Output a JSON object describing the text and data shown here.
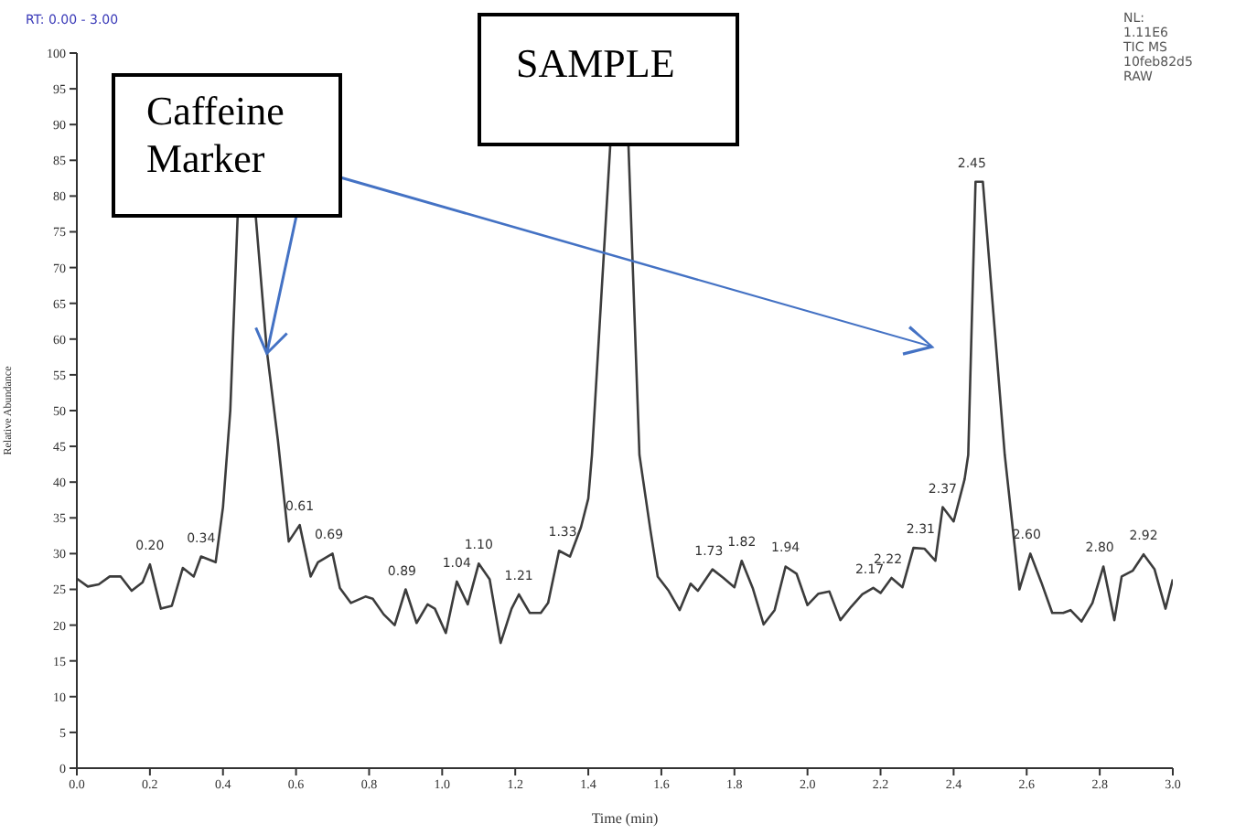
{
  "chart_data": {
    "type": "line",
    "xlabel": "Time (min)",
    "ylabel": "Relative Abundance",
    "x": [
      0.0,
      0.03,
      0.06,
      0.09,
      0.12,
      0.15,
      0.18,
      0.2,
      0.23,
      0.26,
      0.29,
      0.32,
      0.34,
      0.38,
      0.4,
      0.42,
      0.44,
      0.47,
      0.49,
      0.52,
      0.55,
      0.58,
      0.61,
      0.64,
      0.66,
      0.7,
      0.72,
      0.75,
      0.79,
      0.81,
      0.84,
      0.87,
      0.9,
      0.93,
      0.96,
      0.98,
      1.01,
      1.04,
      1.07,
      1.1,
      1.13,
      1.16,
      1.19,
      1.21,
      1.24,
      1.27,
      1.29,
      1.32,
      1.35,
      1.38,
      1.4,
      1.41,
      1.46,
      1.49,
      1.51,
      1.54,
      1.57,
      1.59,
      1.62,
      1.65,
      1.68,
      1.7,
      1.74,
      1.77,
      1.8,
      1.82,
      1.85,
      1.88,
      1.91,
      1.94,
      1.97,
      2.0,
      2.03,
      2.06,
      2.09,
      2.12,
      2.15,
      2.18,
      2.2,
      2.23,
      2.26,
      2.29,
      2.32,
      2.35,
      2.37,
      2.4,
      2.43,
      2.44,
      2.46,
      2.48,
      2.54,
      2.58,
      2.61,
      2.64,
      2.67,
      2.7,
      2.72,
      2.75,
      2.78,
      2.81,
      2.84,
      2.86,
      2.89,
      2.92,
      2.95,
      2.98,
      3.0
    ],
    "series": [
      {
        "color": "#3c3c3c",
        "values": [
          26.5,
          25.4,
          25.7,
          26.8,
          26.8,
          24.8,
          26,
          28.5,
          22.3,
          22.7,
          28,
          26.8,
          29.6,
          28.8,
          36.5,
          50,
          77,
          null,
          77,
          58.4,
          46,
          31.7,
          34,
          26.8,
          28.8,
          30,
          25.2,
          23.1,
          24,
          23.7,
          21.5,
          20,
          25,
          20.3,
          22.9,
          22.3,
          18.9,
          26.1,
          22.9,
          28.6,
          26.4,
          17.5,
          22.3,
          24.3,
          21.7,
          21.7,
          23.1,
          30.4,
          29.6,
          33.7,
          37.7,
          43.8,
          87,
          null,
          87,
          43.8,
          33.3,
          26.8,
          24.8,
          22.1,
          25.8,
          24.8,
          27.8,
          26.6,
          25.3,
          29,
          25.2,
          20.1,
          22.1,
          28.2,
          27.2,
          22.8,
          24.4,
          24.7,
          20.7,
          22.6,
          24.3,
          25.2,
          24.5,
          26.6,
          25.3,
          30.8,
          30.7,
          29,
          36.5,
          34.5,
          40.4,
          43.8,
          82,
          82,
          43.8,
          25,
          30,
          26,
          21.7,
          21.7,
          22.1,
          20.5,
          23.1,
          28.2,
          20.7,
          26.8,
          27.6,
          29.9,
          27.8,
          22.3,
          26.4
        ]
      }
    ],
    "xlim": [
      0,
      3.0
    ],
    "xticks": [
      {
        "value": 0,
        "label": "0.0"
      },
      0.2,
      0.4,
      0.6,
      0.8,
      {
        "value": 1,
        "label": "1.0"
      },
      1.2,
      1.4,
      1.6,
      1.8,
      {
        "value": 2,
        "label": "2.0"
      },
      2.2,
      2.4,
      2.6,
      2.8,
      {
        "value": 3,
        "label": "3.0"
      }
    ],
    "ylim": [
      0,
      100
    ],
    "yticks": [
      0,
      5,
      10,
      15,
      20,
      25,
      30,
      35,
      40,
      45,
      50,
      55,
      60,
      65,
      70,
      75,
      80,
      85,
      90,
      95,
      100
    ],
    "grid": false,
    "legend": false,
    "marker": "none",
    "line_style": "solid",
    "annotations": [
      "RT: 0.00 - 3.00",
      "NL:\n1.11E6\nTIC MS\n10feb82d5\nRAW",
      {
        "text": "Caffeine\nMarker",
        "x": 0.52,
        "y": 58
      },
      "SAMPLE",
      {
        "text": "0.20",
        "x": 0.2,
        "y": 28.5
      },
      {
        "text": "0.34",
        "x": 0.34,
        "y": 29.6
      },
      {
        "text": "0.61",
        "x": 0.61,
        "y": 34
      },
      {
        "text": "0.69",
        "x": 0.69,
        "y": 30
      },
      {
        "text": "0.89",
        "x": 0.89,
        "y": 25
      },
      {
        "text": "1.04",
        "x": 1.04,
        "y": 26.1
      },
      {
        "text": "1.10",
        "x": 1.1,
        "y": 28.6
      },
      {
        "text": "1.21",
        "x": 1.21,
        "y": 24.3
      },
      {
        "text": "1.33",
        "x": 1.33,
        "y": 30.4
      },
      {
        "text": "1.73",
        "x": 1.73,
        "y": 27.8
      },
      {
        "text": "1.82",
        "x": 1.82,
        "y": 29
      },
      {
        "text": "1.94",
        "x": 1.94,
        "y": 28.2
      },
      {
        "text": "2.17",
        "x": 2.17,
        "y": 25.2
      },
      {
        "text": "2.22",
        "x": 2.22,
        "y": 26.6
      },
      {
        "text": "2.31",
        "x": 2.31,
        "y": 30.8
      },
      {
        "text": "2.37",
        "x": 2.37,
        "y": 36.5
      },
      {
        "text": "2.45",
        "x": 2.45,
        "y": 82
      },
      {
        "text": "2.60",
        "x": 2.6,
        "y": 30
      },
      {
        "text": "2.80",
        "x": 2.8,
        "y": 28.2
      },
      {
        "text": "2.92",
        "x": 2.92,
        "y": 29.9
      }
    ]
  }
}
